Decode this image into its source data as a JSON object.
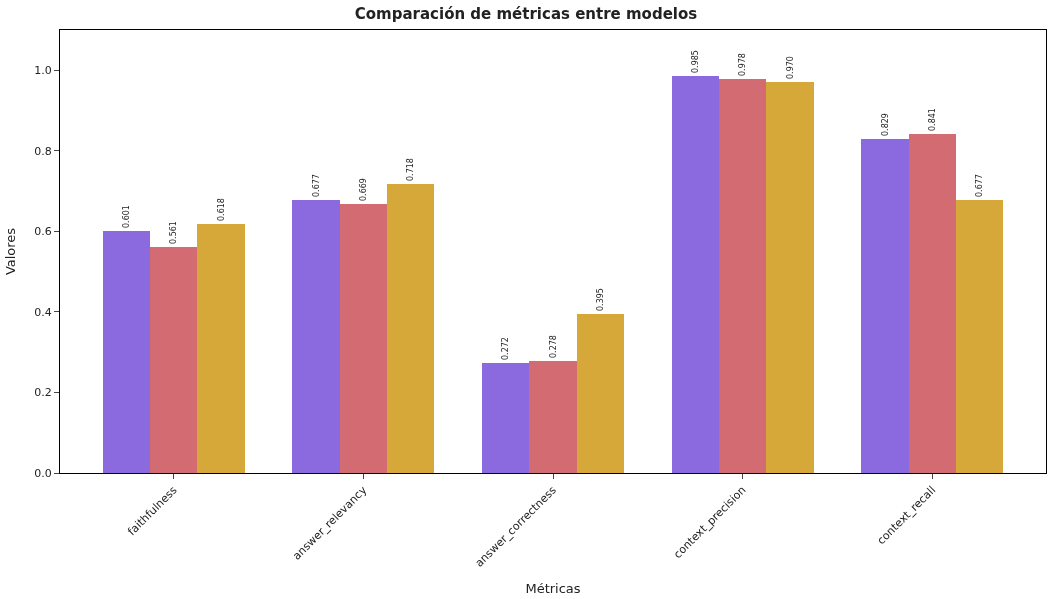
{
  "chart_data": {
    "type": "bar",
    "title": "Comparación de métricas entre modelos",
    "xlabel": "Métricas",
    "ylabel": "Valores",
    "categories": [
      "faithfulness",
      "answer_relevancy",
      "answer_correctness",
      "context_precision",
      "context_recall"
    ],
    "series": [
      {
        "color": "#8a6ade",
        "values": [
          0.601,
          0.677,
          0.272,
          0.985,
          0.829
        ]
      },
      {
        "color": "#d36b72",
        "values": [
          0.561,
          0.669,
          0.278,
          0.978,
          0.841
        ]
      },
      {
        "color": "#d6a83a",
        "values": [
          0.618,
          0.718,
          0.395,
          0.97,
          0.677
        ],
        "value_labels": [
          "0.618",
          "0.718",
          "0.395",
          "0.970",
          "0.677"
        ]
      }
    ],
    "ylim": [
      0,
      1.1
    ],
    "yticks": [
      {
        "value": 0,
        "label": "0.0"
      },
      {
        "value": 0.2,
        "label": "0.2"
      },
      {
        "value": 0.4,
        "label": "0.4"
      },
      {
        "value": 0.6,
        "label": "0.6"
      },
      {
        "value": 0.8,
        "label": "0.8"
      },
      {
        "value": 1,
        "label": "1.0"
      }
    ],
    "data_labels": true
  }
}
